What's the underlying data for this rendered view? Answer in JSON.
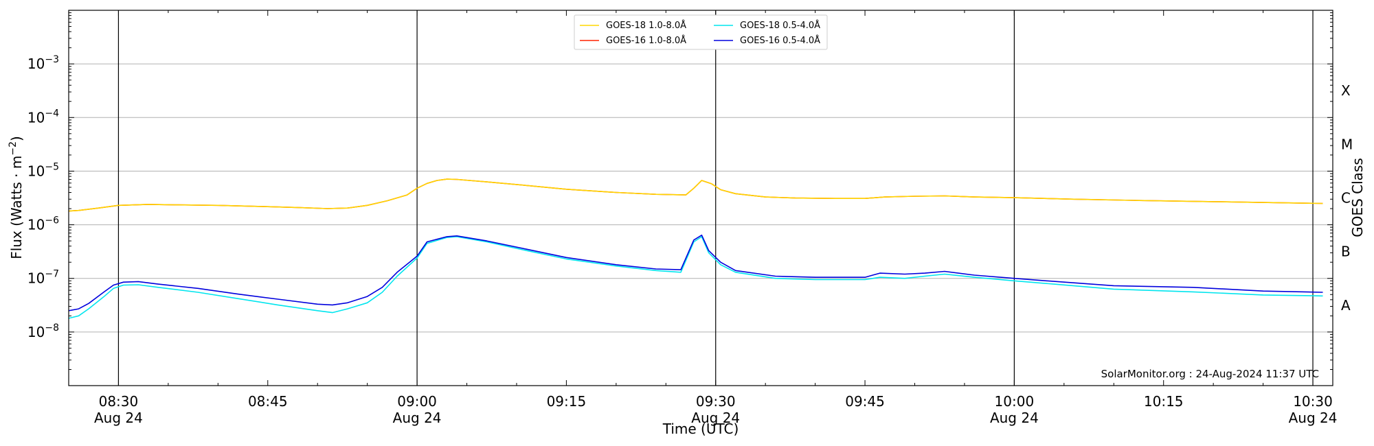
{
  "chart_data": {
    "type": "line",
    "xlabel": "Time (UTC)",
    "ylabel_main": "Flux (Watts · m",
    "ylabel_sup": "−2",
    "ylabel_close": ")",
    "right_label": "GOES Class",
    "credit": "SolarMonitor.org : 24-Aug-2024 11:37 UTC",
    "x_unit": "minutes after 00:00 UTC, 24-Aug-2024",
    "xlim": [
      505,
      632
    ],
    "ylim_log10": [
      -9,
      -2
    ],
    "yscale": "log",
    "y_ticks": [
      {
        "exp": -8,
        "base": "10",
        "sup": "−8"
      },
      {
        "exp": -7,
        "base": "10",
        "sup": "−7"
      },
      {
        "exp": -6,
        "base": "10",
        "sup": "−6"
      },
      {
        "exp": -5,
        "base": "10",
        "sup": "−5"
      },
      {
        "exp": -4,
        "base": "10",
        "sup": "−4"
      },
      {
        "exp": -3,
        "base": "10",
        "sup": "−3"
      }
    ],
    "x_ticks": [
      {
        "t": 510,
        "label": "08:30",
        "label2": "Aug 24"
      },
      {
        "t": 525,
        "label": "08:45",
        "label2": ""
      },
      {
        "t": 540,
        "label": "09:00",
        "label2": "Aug 24"
      },
      {
        "t": 555,
        "label": "09:15",
        "label2": ""
      },
      {
        "t": 570,
        "label": "09:30",
        "label2": "Aug 24"
      },
      {
        "t": 585,
        "label": "09:45",
        "label2": ""
      },
      {
        "t": 600,
        "label": "10:00",
        "label2": "Aug 24"
      },
      {
        "t": 615,
        "label": "10:15",
        "label2": ""
      },
      {
        "t": 630,
        "label": "10:30",
        "label2": "Aug 24"
      }
    ],
    "vertical_lines_at": [
      510,
      540,
      570,
      600,
      630
    ],
    "goes_classes": [
      {
        "label": "A",
        "exp": -7.5
      },
      {
        "label": "B",
        "exp": -6.5
      },
      {
        "label": "C",
        "exp": -5.5
      },
      {
        "label": "M",
        "exp": -4.5
      },
      {
        "label": "X",
        "exp": -3.5
      }
    ],
    "grid": "horizontal at major y ticks",
    "legend_position": "top-center",
    "legend": [
      {
        "name": "GOES-18 1.0-8.0Å",
        "color": "#ffd700"
      },
      {
        "name": "GOES-16 1.0-8.0Å",
        "color": "#ff2200"
      },
      {
        "name": "GOES-18 0.5-4.0Å",
        "color": "#00e5ee"
      },
      {
        "name": "GOES-16 0.5-4.0Å",
        "color": "#0000dd"
      }
    ],
    "series": [
      {
        "name": "GOES-16 1.0-8.0Å",
        "color": "#ff2200",
        "points": [
          [
            505.0,
            1.8e-06
          ],
          [
            506.0,
            1.85e-06
          ],
          [
            508.0,
            2.05e-06
          ],
          [
            510.0,
            2.3e-06
          ],
          [
            513.0,
            2.4e-06
          ],
          [
            516.0,
            2.35e-06
          ],
          [
            520.0,
            2.3e-06
          ],
          [
            524.0,
            2.2e-06
          ],
          [
            528.0,
            2.1e-06
          ],
          [
            531.0,
            2e-06
          ],
          [
            533.0,
            2.05e-06
          ],
          [
            535.0,
            2.3e-06
          ],
          [
            537.0,
            2.8e-06
          ],
          [
            539.0,
            3.6e-06
          ],
          [
            540.0,
            4.8e-06
          ],
          [
            541.0,
            5.9e-06
          ],
          [
            542.0,
            6.7e-06
          ],
          [
            543.0,
            7.1e-06
          ],
          [
            544.0,
            7e-06
          ],
          [
            547.0,
            6.3e-06
          ],
          [
            551.0,
            5.4e-06
          ],
          [
            555.0,
            4.6e-06
          ],
          [
            560.0,
            4e-06
          ],
          [
            564.0,
            3.7e-06
          ],
          [
            567.0,
            3.6e-06
          ],
          [
            567.8,
            4.8e-06
          ],
          [
            568.6,
            6.7e-06
          ],
          [
            569.6,
            5.8e-06
          ],
          [
            570.5,
            4.5e-06
          ],
          [
            572.0,
            3.8e-06
          ],
          [
            575.0,
            3.3e-06
          ],
          [
            578.0,
            3.15e-06
          ],
          [
            582.0,
            3.1e-06
          ],
          [
            585.0,
            3.1e-06
          ],
          [
            587.0,
            3.3e-06
          ],
          [
            590.0,
            3.4e-06
          ],
          [
            593.0,
            3.45e-06
          ],
          [
            596.0,
            3.3e-06
          ],
          [
            600.0,
            3.2e-06
          ],
          [
            606.0,
            3e-06
          ],
          [
            612.0,
            2.85e-06
          ],
          [
            620.0,
            2.7e-06
          ],
          [
            631.0,
            2.5e-06
          ]
        ]
      },
      {
        "name": "GOES-18 1.0-8.0Å",
        "color": "#ffd700",
        "points": [
          [
            505.0,
            1.8e-06
          ],
          [
            506.0,
            1.85e-06
          ],
          [
            508.0,
            2.05e-06
          ],
          [
            510.0,
            2.3e-06
          ],
          [
            513.0,
            2.4e-06
          ],
          [
            516.0,
            2.35e-06
          ],
          [
            520.0,
            2.3e-06
          ],
          [
            524.0,
            2.2e-06
          ],
          [
            528.0,
            2.1e-06
          ],
          [
            531.0,
            2e-06
          ],
          [
            533.0,
            2.05e-06
          ],
          [
            535.0,
            2.3e-06
          ],
          [
            537.0,
            2.8e-06
          ],
          [
            539.0,
            3.6e-06
          ],
          [
            540.0,
            4.8e-06
          ],
          [
            541.0,
            5.9e-06
          ],
          [
            542.0,
            6.7e-06
          ],
          [
            543.0,
            7.1e-06
          ],
          [
            544.0,
            7e-06
          ],
          [
            547.0,
            6.3e-06
          ],
          [
            551.0,
            5.4e-06
          ],
          [
            555.0,
            4.6e-06
          ],
          [
            560.0,
            4e-06
          ],
          [
            564.0,
            3.7e-06
          ],
          [
            567.0,
            3.6e-06
          ],
          [
            567.8,
            4.8e-06
          ],
          [
            568.6,
            6.7e-06
          ],
          [
            569.6,
            5.8e-06
          ],
          [
            570.5,
            4.5e-06
          ],
          [
            572.0,
            3.8e-06
          ],
          [
            575.0,
            3.3e-06
          ],
          [
            578.0,
            3.15e-06
          ],
          [
            582.0,
            3.1e-06
          ],
          [
            585.0,
            3.1e-06
          ],
          [
            587.0,
            3.3e-06
          ],
          [
            590.0,
            3.4e-06
          ],
          [
            593.0,
            3.45e-06
          ],
          [
            596.0,
            3.3e-06
          ],
          [
            600.0,
            3.2e-06
          ],
          [
            606.0,
            3e-06
          ],
          [
            612.0,
            2.85e-06
          ],
          [
            620.0,
            2.7e-06
          ],
          [
            631.0,
            2.5e-06
          ]
        ]
      },
      {
        "name": "GOES-18 0.5-4.0Å",
        "color": "#00e5ee",
        "points": [
          [
            505.0,
            1.8e-08
          ],
          [
            506.0,
            2e-08
          ],
          [
            507.0,
            2.7e-08
          ],
          [
            508.5,
            4.5e-08
          ],
          [
            509.5,
            6.5e-08
          ],
          [
            510.5,
            7.5e-08
          ],
          [
            512.0,
            7.6e-08
          ],
          [
            514.0,
            6.8e-08
          ],
          [
            518.0,
            5.5e-08
          ],
          [
            522.0,
            4.2e-08
          ],
          [
            526.0,
            3.2e-08
          ],
          [
            530.0,
            2.5e-08
          ],
          [
            531.5,
            2.3e-08
          ],
          [
            533.0,
            2.7e-08
          ],
          [
            535.0,
            3.5e-08
          ],
          [
            536.5,
            5.5e-08
          ],
          [
            538.0,
            1.1e-07
          ],
          [
            540.0,
            2.4e-07
          ],
          [
            541.0,
            4.5e-07
          ],
          [
            543.0,
            5.8e-07
          ],
          [
            544.0,
            6e-07
          ],
          [
            547.0,
            4.8e-07
          ],
          [
            551.0,
            3.3e-07
          ],
          [
            555.0,
            2.3e-07
          ],
          [
            560.0,
            1.7e-07
          ],
          [
            564.0,
            1.4e-07
          ],
          [
            566.5,
            1.3e-07
          ],
          [
            567.8,
            4.8e-07
          ],
          [
            568.6,
            6e-07
          ],
          [
            569.3,
            3e-07
          ],
          [
            570.5,
            1.8e-07
          ],
          [
            572.0,
            1.3e-07
          ],
          [
            576.0,
            1e-07
          ],
          [
            580.0,
            9.5e-08
          ],
          [
            585.0,
            9.5e-08
          ],
          [
            586.5,
            1.05e-07
          ],
          [
            589.0,
            1e-07
          ],
          [
            591.0,
            1.1e-07
          ],
          [
            593.0,
            1.2e-07
          ],
          [
            596.0,
            1.05e-07
          ],
          [
            600.0,
            9e-08
          ],
          [
            604.0,
            7.8e-08
          ],
          [
            610.0,
            6.3e-08
          ],
          [
            618.0,
            5.6e-08
          ],
          [
            625.0,
            4.9e-08
          ],
          [
            631.0,
            4.7e-08
          ]
        ]
      },
      {
        "name": "GOES-16 0.5-4.0Å",
        "color": "#0000dd",
        "points": [
          [
            505.0,
            2.5e-08
          ],
          [
            506.0,
            2.7e-08
          ],
          [
            507.0,
            3.4e-08
          ],
          [
            508.5,
            5.5e-08
          ],
          [
            509.5,
            7.5e-08
          ],
          [
            510.5,
            8.5e-08
          ],
          [
            512.0,
            8.7e-08
          ],
          [
            514.0,
            7.8e-08
          ],
          [
            518.0,
            6.5e-08
          ],
          [
            522.0,
            5.1e-08
          ],
          [
            526.0,
            4.1e-08
          ],
          [
            530.0,
            3.3e-08
          ],
          [
            531.5,
            3.2e-08
          ],
          [
            533.0,
            3.5e-08
          ],
          [
            535.0,
            4.6e-08
          ],
          [
            536.5,
            6.8e-08
          ],
          [
            538.0,
            1.3e-07
          ],
          [
            540.0,
            2.6e-07
          ],
          [
            541.0,
            4.8e-07
          ],
          [
            543.0,
            6e-07
          ],
          [
            544.0,
            6.2e-07
          ],
          [
            547.0,
            5e-07
          ],
          [
            551.0,
            3.5e-07
          ],
          [
            555.0,
            2.45e-07
          ],
          [
            560.0,
            1.8e-07
          ],
          [
            564.0,
            1.5e-07
          ],
          [
            566.5,
            1.45e-07
          ],
          [
            567.8,
            5.2e-07
          ],
          [
            568.6,
            6.4e-07
          ],
          [
            569.3,
            3.3e-07
          ],
          [
            570.5,
            2e-07
          ],
          [
            572.0,
            1.4e-07
          ],
          [
            576.0,
            1.1e-07
          ],
          [
            580.0,
            1.05e-07
          ],
          [
            585.0,
            1.05e-07
          ],
          [
            586.5,
            1.25e-07
          ],
          [
            589.0,
            1.2e-07
          ],
          [
            591.0,
            1.25e-07
          ],
          [
            593.0,
            1.35e-07
          ],
          [
            596.0,
            1.15e-07
          ],
          [
            600.0,
            1e-07
          ],
          [
            604.0,
            8.8e-08
          ],
          [
            610.0,
            7.3e-08
          ],
          [
            618.0,
            6.8e-08
          ],
          [
            625.0,
            5.8e-08
          ],
          [
            631.0,
            5.5e-08
          ]
        ]
      }
    ]
  }
}
